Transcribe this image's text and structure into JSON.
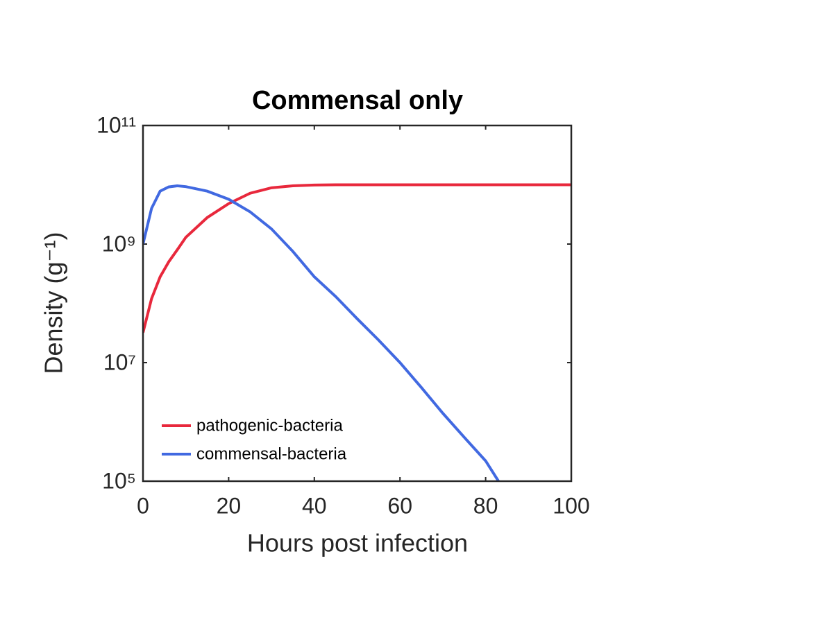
{
  "chart_data": {
    "type": "line",
    "title": "Commensal only",
    "x_label": "Hours post infection",
    "y_label": "Density (g⁻¹)",
    "x": [
      0,
      2,
      4,
      6,
      8,
      10,
      15,
      20,
      25,
      30,
      35,
      40,
      45,
      50,
      55,
      60,
      65,
      70,
      75,
      80,
      83,
      90,
      100
    ],
    "series": [
      {
        "name": "pathogenic-bacteria",
        "color": "#e8283c",
        "values": [
          32000000,
          120000000,
          280000000,
          500000000,
          800000000,
          1300000000,
          2800000000,
          4800000000,
          7200000000,
          8900000000,
          9600000000,
          9900000000,
          10000000000,
          10000000000,
          10000000000,
          10000000000,
          10000000000,
          10000000000,
          10000000000,
          10000000000,
          10000000000,
          10000000000,
          10000000000
        ]
      },
      {
        "name": "commensal-bacteria",
        "color": "#4169e1",
        "values": [
          1000000000,
          4000000000,
          7800000000,
          9200000000,
          9600000000,
          9300000000,
          7800000000,
          5700000000,
          3500000000,
          1800000000,
          750000000,
          280000000,
          130000000,
          55000000,
          24000000,
          10000000,
          3800000,
          1400000,
          550000,
          220000,
          100000,
          null,
          null
        ]
      }
    ],
    "xlim": [
      0,
      100
    ],
    "xticks": [
      0,
      20,
      40,
      60,
      80,
      100
    ],
    "ylim": [
      100000,
      100000000000
    ],
    "yscale": "log",
    "yticks": [
      {
        "value": 100000,
        "label": "10⁵"
      },
      {
        "value": 10000000,
        "label": "10⁷"
      },
      {
        "value": 1000000000,
        "label": "10⁹"
      },
      {
        "value": 100000000000,
        "label": "10¹¹"
      }
    ],
    "legend": "lower left"
  }
}
